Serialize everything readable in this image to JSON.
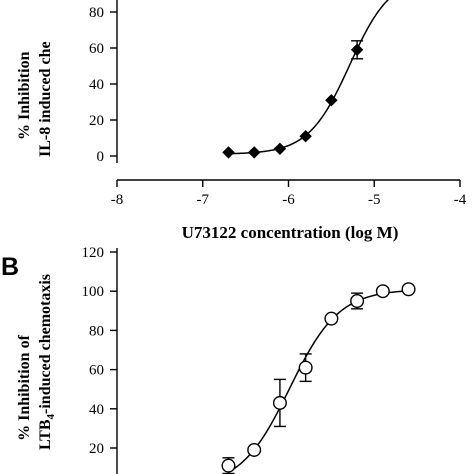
{
  "chart_data": [
    {
      "type": "scatter",
      "marker": "filled-diamond",
      "fitted_curve": true,
      "grid": false,
      "color": "#000000",
      "xlabel": "U73122 concentration (log M)",
      "ylabel_lines": [
        "% Inhibition",
        "IL-8 induced che"
      ],
      "xlim": [
        -8,
        -4
      ],
      "x_ticks": [
        -8,
        -7,
        -6,
        -5,
        -4
      ],
      "y_ticks": [
        0,
        20,
        40,
        60,
        80
      ],
      "series": [
        {
          "x": [
            -6.7,
            -6.4,
            -6.1,
            -5.8,
            -5.5,
            -5.2
          ],
          "y": [
            2,
            2,
            4,
            11,
            31,
            59
          ],
          "error": [
            0,
            0,
            0,
            0,
            0,
            5
          ]
        }
      ]
    },
    {
      "type": "scatter",
      "panel_label": "B",
      "marker": "open-circle",
      "fitted_curve": true,
      "grid": false,
      "color": "#000000",
      "ylabel_line1": "% Inhibition of",
      "ylabel_line2": {
        "prefix": "LTB",
        "subscript": "4",
        "suffix": "-induced chemotaxis"
      },
      "y_ticks": [
        20,
        40,
        60,
        80,
        100,
        120
      ],
      "series": [
        {
          "x": [
            -6.7,
            -6.4,
            -6.1,
            -5.8,
            -5.5,
            -5.2,
            -4.9,
            -4.6
          ],
          "y": [
            11,
            19,
            43,
            61,
            86,
            95,
            100,
            101
          ],
          "error": [
            4,
            0,
            12,
            7,
            0,
            4,
            0,
            0
          ]
        }
      ]
    }
  ]
}
